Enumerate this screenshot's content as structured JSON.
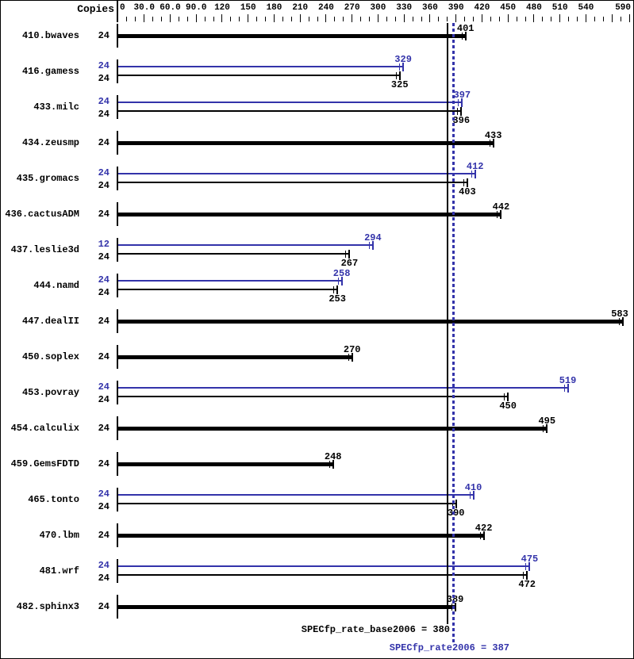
{
  "header": {
    "copies_label": "Copies"
  },
  "colors": {
    "base": "#000000",
    "peak": "#3333aa",
    "background": "#ffffff"
  },
  "footer": {
    "base_label": "SPECfp_rate_base2006 = 380",
    "peak_label": "SPECfp_rate2006 = 387"
  },
  "chart_data": {
    "type": "bar",
    "orientation": "horizontal",
    "title": "",
    "xlabel": "",
    "ylabel": "Copies",
    "axis": {
      "min": 0,
      "max": 590,
      "minor_tick_step": 10,
      "major_tick_step": 30,
      "tick_label_values": [
        0,
        30,
        60,
        90,
        120,
        150,
        180,
        210,
        240,
        270,
        300,
        330,
        360,
        390,
        420,
        450,
        480,
        510,
        540,
        590
      ],
      "tick_labels": [
        "0",
        "30.0",
        "60.0",
        "90.0",
        "120",
        "150",
        "180",
        "210",
        "240",
        "270",
        "300",
        "330",
        "360",
        "390",
        "420",
        "450",
        "480",
        "510",
        "540",
        "590"
      ]
    },
    "reference_lines": [
      {
        "name": "SPECfp_rate_base2006",
        "value": 380,
        "style": "solid",
        "color": "#000000"
      },
      {
        "name": "SPECfp_rate2006",
        "value": 387,
        "style": "dotted",
        "color": "#3333aa"
      }
    ],
    "benchmarks": [
      {
        "name": "410.bwaves",
        "results": [
          {
            "type": "base",
            "copies": 24,
            "value": 401
          }
        ]
      },
      {
        "name": "416.gamess",
        "results": [
          {
            "type": "peak",
            "copies": 24,
            "value": 329
          },
          {
            "type": "base",
            "copies": 24,
            "value": 325
          }
        ]
      },
      {
        "name": "433.milc",
        "results": [
          {
            "type": "peak",
            "copies": 24,
            "value": 397
          },
          {
            "type": "base",
            "copies": 24,
            "value": 396
          }
        ]
      },
      {
        "name": "434.zeusmp",
        "results": [
          {
            "type": "base",
            "copies": 24,
            "value": 433
          }
        ]
      },
      {
        "name": "435.gromacs",
        "results": [
          {
            "type": "peak",
            "copies": 24,
            "value": 412
          },
          {
            "type": "base",
            "copies": 24,
            "value": 403
          }
        ]
      },
      {
        "name": "436.cactusADM",
        "results": [
          {
            "type": "base",
            "copies": 24,
            "value": 442
          }
        ]
      },
      {
        "name": "437.leslie3d",
        "results": [
          {
            "type": "peak",
            "copies": 12,
            "value": 294
          },
          {
            "type": "base",
            "copies": 24,
            "value": 267
          }
        ]
      },
      {
        "name": "444.namd",
        "results": [
          {
            "type": "peak",
            "copies": 24,
            "value": 258
          },
          {
            "type": "base",
            "copies": 24,
            "value": 253
          }
        ]
      },
      {
        "name": "447.dealII",
        "results": [
          {
            "type": "base",
            "copies": 24,
            "value": 583
          }
        ]
      },
      {
        "name": "450.soplex",
        "results": [
          {
            "type": "base",
            "copies": 24,
            "value": 270
          }
        ]
      },
      {
        "name": "453.povray",
        "results": [
          {
            "type": "peak",
            "copies": 24,
            "value": 519
          },
          {
            "type": "base",
            "copies": 24,
            "value": 450
          }
        ]
      },
      {
        "name": "454.calculix",
        "results": [
          {
            "type": "base",
            "copies": 24,
            "value": 495
          }
        ]
      },
      {
        "name": "459.GemsFDTD",
        "results": [
          {
            "type": "base",
            "copies": 24,
            "value": 248
          }
        ]
      },
      {
        "name": "465.tonto",
        "results": [
          {
            "type": "peak",
            "copies": 24,
            "value": 410
          },
          {
            "type": "base",
            "copies": 24,
            "value": 390
          }
        ]
      },
      {
        "name": "470.lbm",
        "results": [
          {
            "type": "base",
            "copies": 24,
            "value": 422
          }
        ]
      },
      {
        "name": "481.wrf",
        "results": [
          {
            "type": "peak",
            "copies": 24,
            "value": 475
          },
          {
            "type": "base",
            "copies": 24,
            "value": 472
          }
        ]
      },
      {
        "name": "482.sphinx3",
        "results": [
          {
            "type": "base",
            "copies": 24,
            "value": 389
          }
        ]
      }
    ]
  }
}
